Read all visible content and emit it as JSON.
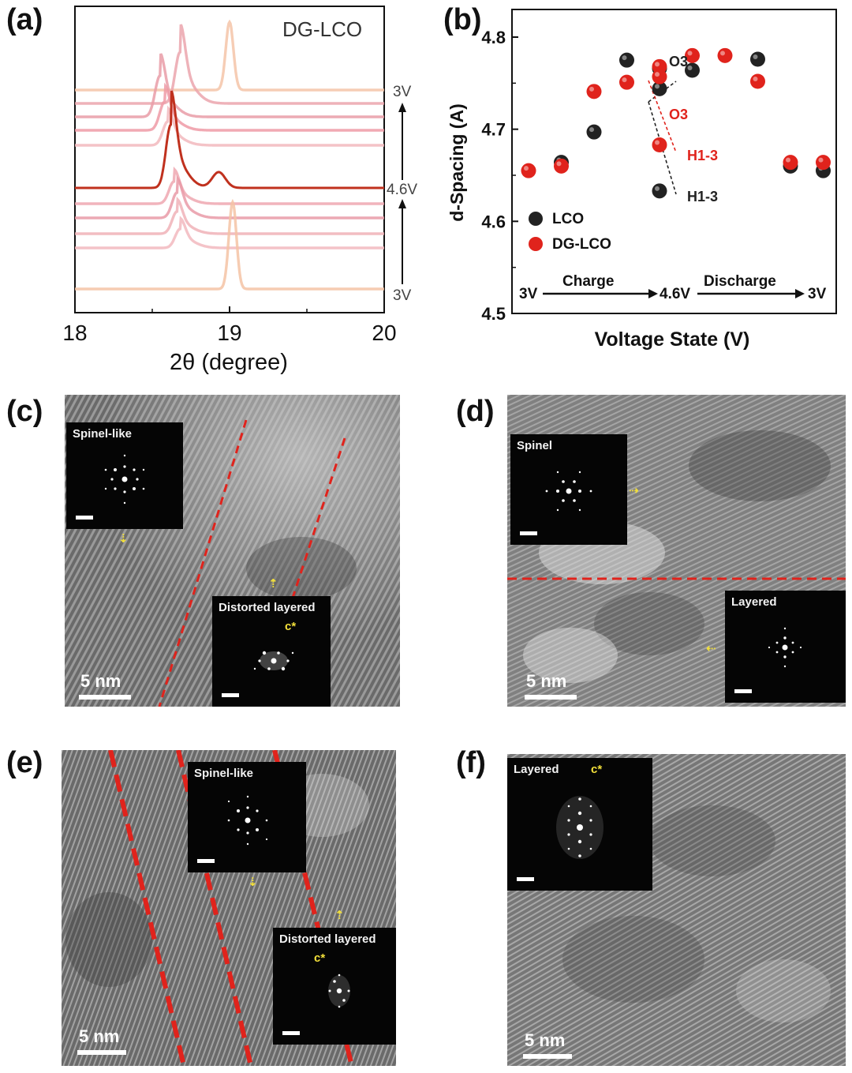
{
  "panels": {
    "a": "(a)",
    "b": "(b)",
    "c": "(c)",
    "d": "(d)",
    "e": "(e)",
    "f": "(f)"
  },
  "chart_data": [
    {
      "type": "line",
      "panel": "a",
      "title": "DG-LCO",
      "xlabel": "2θ (degree)",
      "ylabel": "",
      "xlim": [
        18,
        20
      ],
      "xticks": [
        "18",
        "19",
        "20"
      ],
      "right_labels": [
        "3V",
        "4.6V",
        "3V"
      ],
      "series": [
        {
          "state": "discharge-end",
          "peak": 19.0,
          "color": "#f4c4a8"
        },
        {
          "state": "discharge",
          "peak": 18.68,
          "color": "#eba5ad"
        },
        {
          "state": "discharge",
          "peak": 18.55,
          "color": "#e99ca7"
        },
        {
          "state": "discharge",
          "peak": 18.58,
          "color": "#ee9aa6"
        },
        {
          "state": "discharge",
          "peak": 18.6,
          "color": "#f2b8bd"
        },
        {
          "state": "4.6V",
          "peak": 18.62,
          "peak2": 18.93,
          "color": "#c0311e"
        },
        {
          "state": "charge",
          "peak": 18.64,
          "color": "#eea7b0"
        },
        {
          "state": "charge",
          "peak": 18.66,
          "color": "#e99aa7"
        },
        {
          "state": "charge",
          "peak": 18.66,
          "color": "#f0b1b7"
        },
        {
          "state": "charge",
          "peak": 18.68,
          "color": "#f2b8be"
        },
        {
          "state": "charge-start",
          "peak": 19.02,
          "color": "#f4c3a5"
        }
      ]
    },
    {
      "type": "scatter",
      "panel": "b",
      "xlabel": "Voltage State (V)",
      "ylabel": "d-Spacing (A)",
      "ylim": [
        4.5,
        4.83
      ],
      "yticks": [
        "4.5",
        "4.6",
        "4.7",
        "4.8"
      ],
      "x_states": [
        "3V",
        "Charge",
        "4.6V",
        "Discharge",
        "3V"
      ],
      "legend": [
        "LCO",
        "DG-LCO"
      ],
      "series": [
        {
          "name": "LCO",
          "color": "#222222",
          "points": [
            [
              1,
              4.664
            ],
            [
              2,
              4.697
            ],
            [
              3,
              4.775
            ],
            [
              4,
              4.744
            ],
            [
              4,
              4.633
            ],
            [
              4,
              4.766
            ],
            [
              5,
              4.764
            ],
            [
              7,
              4.776
            ],
            [
              8,
              4.66
            ],
            [
              9,
              4.655
            ]
          ]
        },
        {
          "name": "DG-LCO",
          "color": "#e0231c",
          "points": [
            [
              0,
              4.655
            ],
            [
              1,
              4.66
            ],
            [
              2,
              4.741
            ],
            [
              3,
              4.751
            ],
            [
              4,
              4.768
            ],
            [
              4,
              4.683
            ],
            [
              4,
              4.757
            ],
            [
              5,
              4.78
            ],
            [
              6,
              4.78
            ],
            [
              7,
              4.752
            ],
            [
              8,
              4.664
            ],
            [
              9,
              4.664
            ]
          ]
        }
      ],
      "annotations": {
        "lco_o3": "O3",
        "dg_o3": "O3",
        "dg_h13": "H1-3",
        "lco_h13": "H1-3",
        "start": "3V",
        "charge": "Charge",
        "mid": "4.6V",
        "discharge": "Discharge",
        "end": "3V"
      }
    }
  ],
  "tem": {
    "c": {
      "inset1": "Spinel-like",
      "inset2": "Distorted layered",
      "cstar": "c*",
      "scale": "5 nm"
    },
    "d": {
      "inset1": "Spinel",
      "inset2": "Layered",
      "scale": "5 nm"
    },
    "e": {
      "inset1": "Spinel-like",
      "inset2": "Distorted layered",
      "cstar": "c*",
      "scale": "5 nm"
    },
    "f": {
      "inset1": "Layered",
      "cstar": "c*",
      "scale": "5 nm"
    }
  },
  "colors": {
    "red_dash": "#e0231c",
    "arrow": "#f3e03a",
    "tem_gray": "#707070"
  }
}
